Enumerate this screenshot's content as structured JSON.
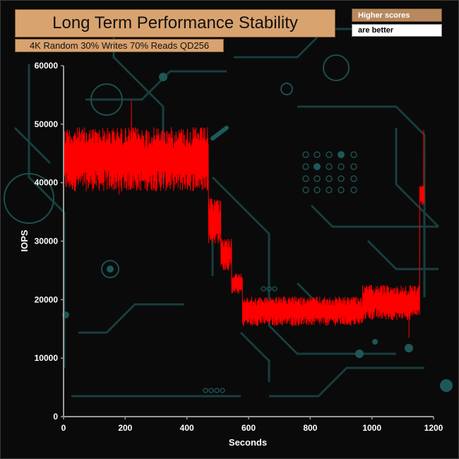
{
  "header": {
    "title": "Long Term Performance Stability",
    "subtitle": "4K Random 30% Writes 70% Reads QD256"
  },
  "legend": {
    "line1": "Higher scores",
    "line2": "are better"
  },
  "colors": {
    "series": "#ff0000",
    "title_bg": "#d9a36f",
    "circuit": "#1b4a4a",
    "axis": "#9a9a9a"
  },
  "chart_data": {
    "type": "line",
    "title": "Long Term Performance Stability",
    "subtitle": "4K Random 30% Writes 70% Reads QD256",
    "xlabel": "Seconds",
    "ylabel": "IOPS",
    "xlim": [
      0,
      1200
    ],
    "ylim": [
      0,
      60000
    ],
    "xticks": [
      0,
      200,
      400,
      600,
      800,
      1000,
      1200
    ],
    "yticks": [
      0,
      10000,
      20000,
      30000,
      40000,
      50000,
      60000
    ],
    "grid": false,
    "series": [
      {
        "color": "#ff0000",
        "segments": [
          {
            "x_start": 0,
            "x_end": 470,
            "low": 38500,
            "high": 49500,
            "spikes": [
              [
                220,
                54000
              ],
              [
                180,
                38000
              ]
            ]
          },
          {
            "x_start": 470,
            "x_end": 510,
            "low": 29500,
            "high": 37500
          },
          {
            "x_start": 510,
            "x_end": 545,
            "low": 25000,
            "high": 30500
          },
          {
            "x_start": 545,
            "x_end": 580,
            "low": 21000,
            "high": 24500
          },
          {
            "x_start": 580,
            "x_end": 970,
            "low": 15500,
            "high": 20500
          },
          {
            "x_start": 970,
            "x_end": 1130,
            "low": 16500,
            "high": 22500,
            "spikes": [
              [
                1120,
                13500
              ]
            ]
          },
          {
            "x_start": 1130,
            "x_end": 1155,
            "low": 17000,
            "high": 22500
          },
          {
            "x_start": 1155,
            "x_end": 1170,
            "low": 36000,
            "high": 39500,
            "spikes": [
              [
                1168,
                49000
              ]
            ]
          }
        ]
      }
    ]
  }
}
